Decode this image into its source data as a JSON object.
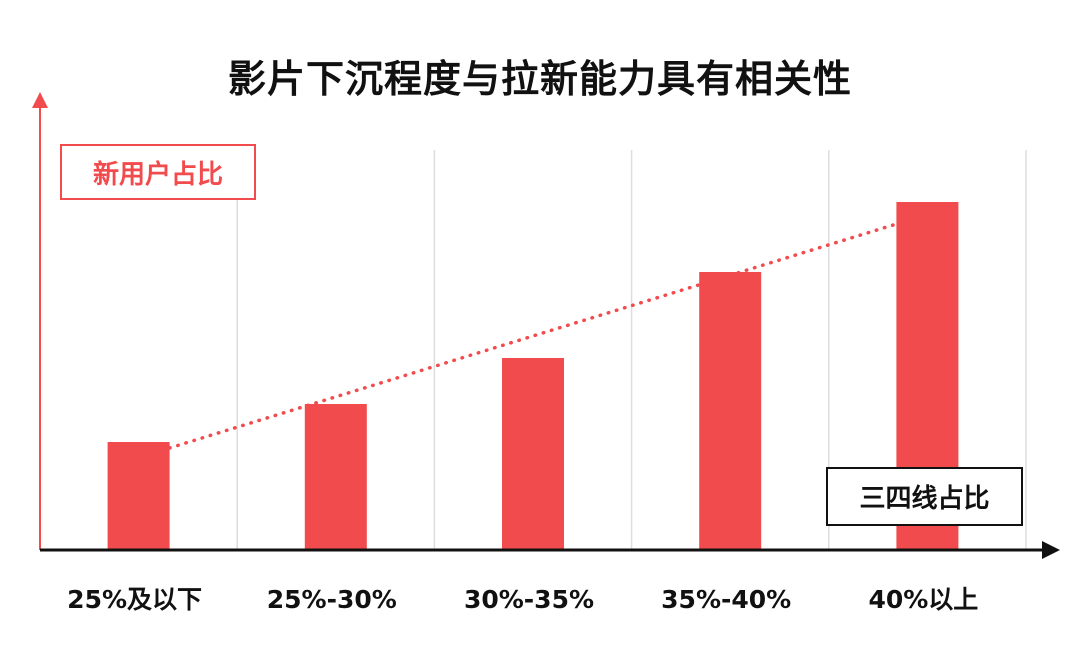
{
  "chart_data": {
    "type": "bar",
    "title": "影片下沉程度与拉新能力具有相关性",
    "ylabel": "新用户占比",
    "xlabel": "三四线占比",
    "categories": [
      "25%及以下",
      "25%-30%",
      "30%-35%",
      "35%-40%",
      "40%以上"
    ],
    "values": [
      27,
      36.5,
      48,
      69.5,
      87
    ],
    "ylim": [
      0,
      100
    ],
    "trendline": {
      "style": "dotted",
      "from_index": 0,
      "to_index": 4
    },
    "grid": "vertical",
    "colors": {
      "bar": "#f24b4d",
      "trend": "#f24b4d",
      "axis_y": "#f24b4d",
      "axis_x": "#111111",
      "grid": "#dddddd"
    }
  }
}
